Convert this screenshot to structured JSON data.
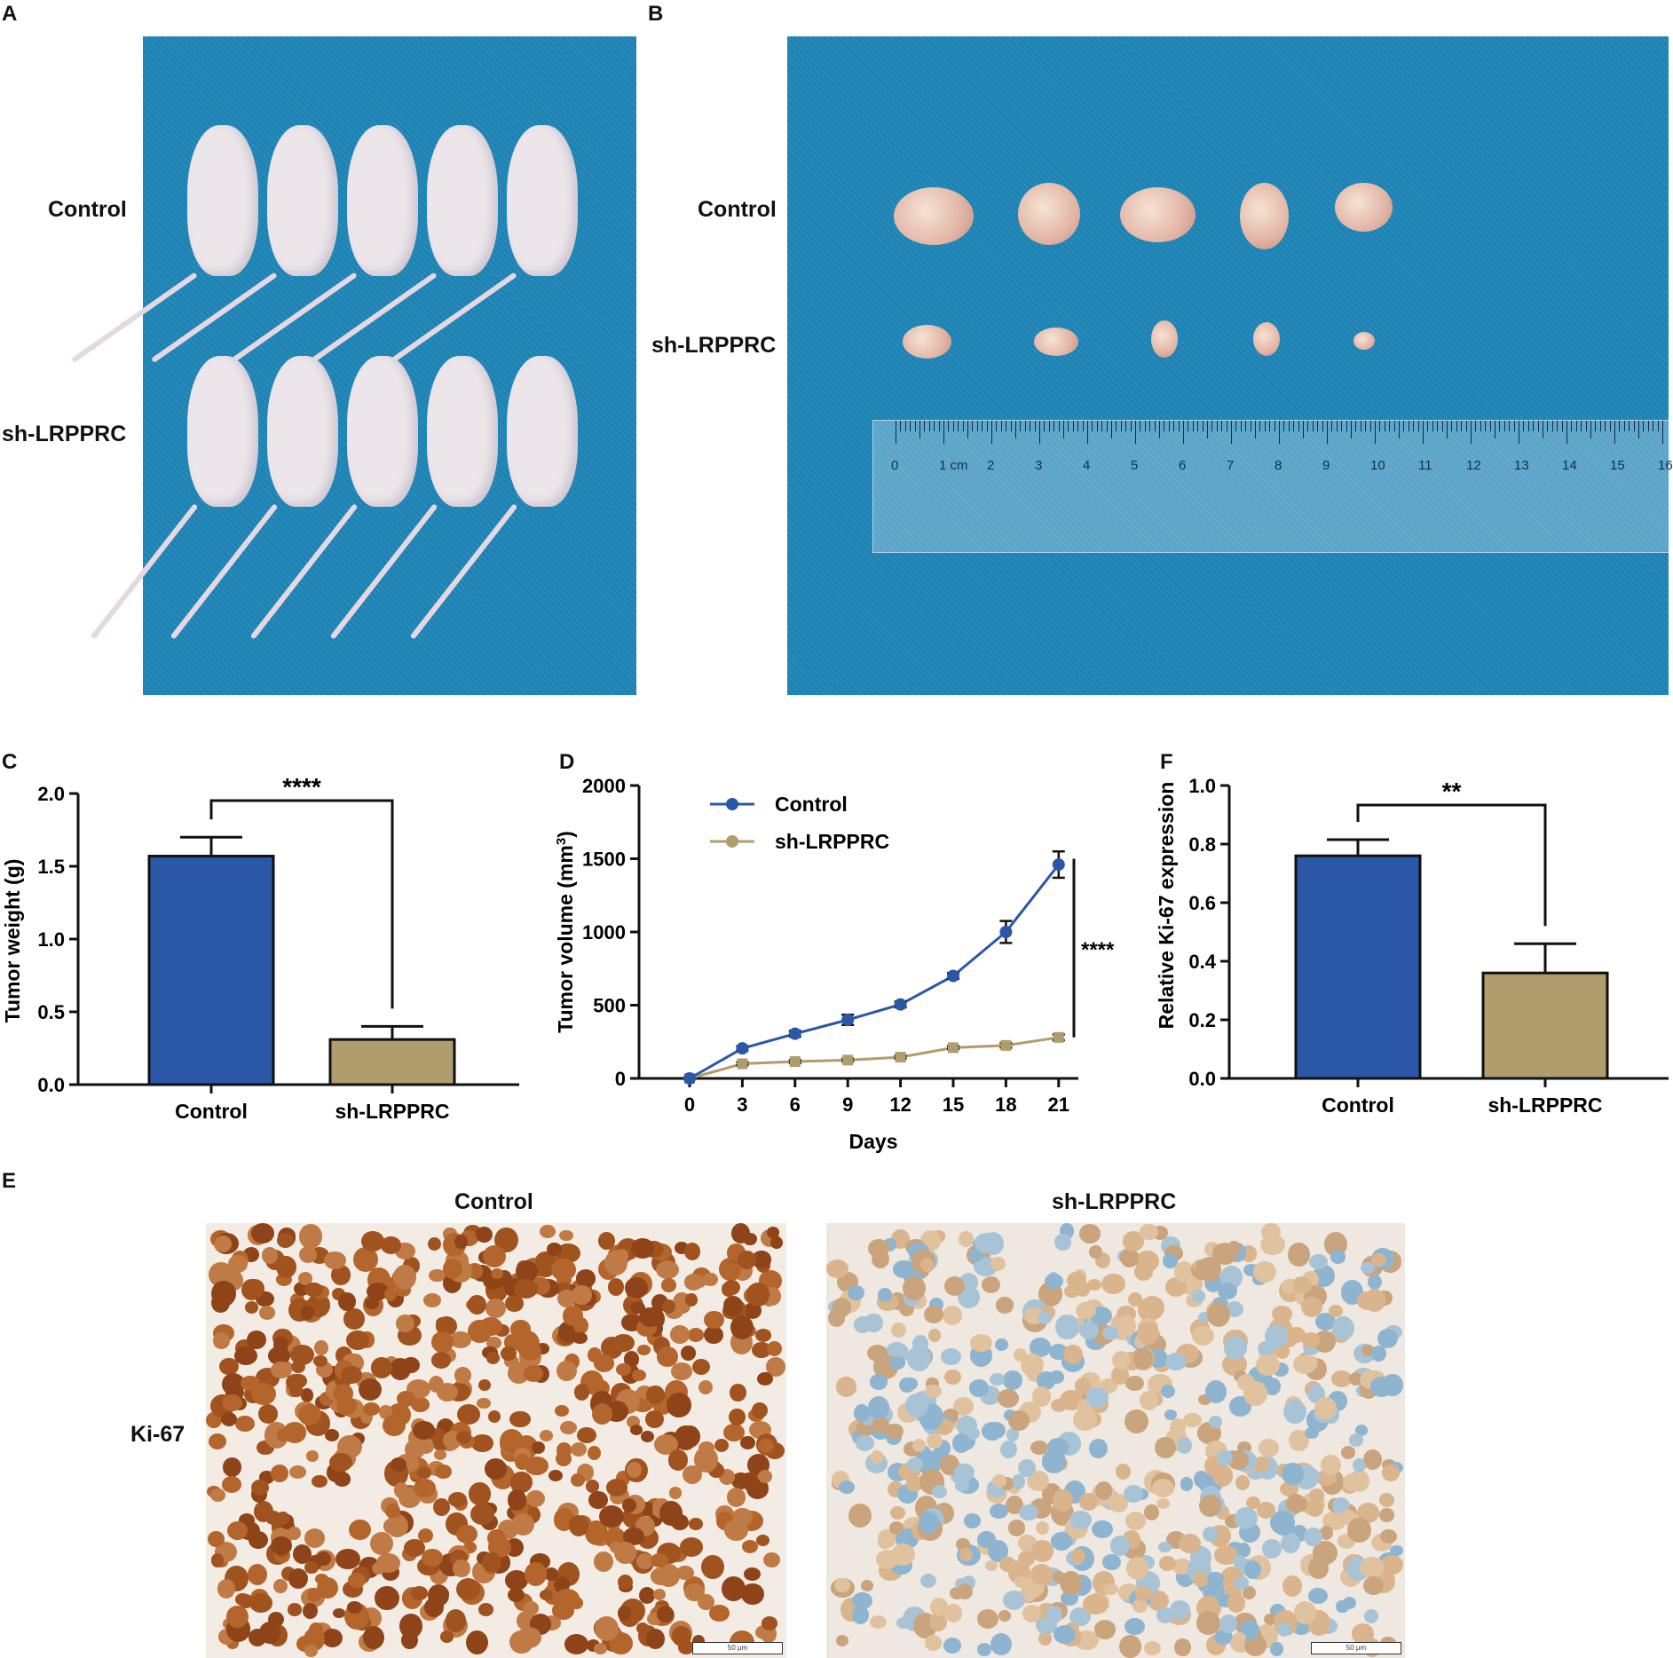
{
  "panels": {
    "A": {
      "letter": "A",
      "row_labels": [
        "Control",
        "sh-LRPPRC"
      ]
    },
    "B": {
      "letter": "B",
      "row_labels": [
        "Control",
        "sh-LRPPRC"
      ],
      "ruler_labels": [
        "0",
        "1 cm",
        "2",
        "3",
        "4",
        "5",
        "6",
        "7",
        "8",
        "9",
        "10",
        "11",
        "12",
        "13",
        "14",
        "15",
        "16"
      ]
    },
    "C": {
      "letter": "C"
    },
    "D": {
      "letter": "D"
    },
    "F": {
      "letter": "F"
    },
    "E": {
      "letter": "E",
      "col_labels": [
        "Control",
        "sh-LRPPRC"
      ],
      "row_label": "Ki-67",
      "scalebar_text": "50 μm"
    }
  },
  "colors": {
    "control": "#2b57a7",
    "sh": "#b09c6d",
    "tissue_brown": "#a85a2a",
    "tissue_blue": "#9ec3d8",
    "drape": "#1f86b8"
  },
  "chart_data": [
    {
      "id": "C",
      "type": "bar",
      "categories": [
        "Control",
        "sh-LRPPRC"
      ],
      "values": [
        1.57,
        0.31
      ],
      "errors": [
        0.13,
        0.09
      ],
      "ylabel": "Tumor weight (g)",
      "xlabel": "",
      "ylim": [
        0,
        2.0
      ],
      "yticks": [
        "0.0",
        "0.5",
        "1.0",
        "1.5",
        "2.0"
      ],
      "significance": "****"
    },
    {
      "id": "D",
      "type": "line",
      "x": [
        0,
        3,
        6,
        9,
        12,
        15,
        18,
        21
      ],
      "xticks": [
        "0",
        "3",
        "6",
        "9",
        "12",
        "15",
        "18",
        "21"
      ],
      "series": [
        {
          "name": "Control",
          "values": [
            0,
            205,
            305,
            400,
            505,
            700,
            1000,
            1460
          ],
          "errors": [
            0,
            15,
            20,
            35,
            20,
            20,
            75,
            90
          ]
        },
        {
          "name": "sh-LRPPRC",
          "values": [
            0,
            100,
            115,
            125,
            145,
            210,
            225,
            280
          ],
          "errors": [
            0,
            10,
            10,
            10,
            10,
            10,
            15,
            20
          ]
        }
      ],
      "xlabel": "Days",
      "ylabel": "Tumor volume (mm3)",
      "ylim": [
        0,
        2000
      ],
      "yticks": [
        "0",
        "500",
        "1000",
        "1500",
        "2000"
      ],
      "significance": "****",
      "legend": "top-left"
    },
    {
      "id": "F",
      "type": "bar",
      "categories": [
        "Control",
        "sh-LRPPRC"
      ],
      "values": [
        0.76,
        0.36
      ],
      "errors": [
        0.055,
        0.1
      ],
      "ylabel": "Relative Ki-67 expression",
      "xlabel": "",
      "ylim": [
        0,
        1.0
      ],
      "yticks": [
        "0.0",
        "0.2",
        "0.4",
        "0.6",
        "0.8",
        "1.0"
      ],
      "significance": "**"
    }
  ]
}
